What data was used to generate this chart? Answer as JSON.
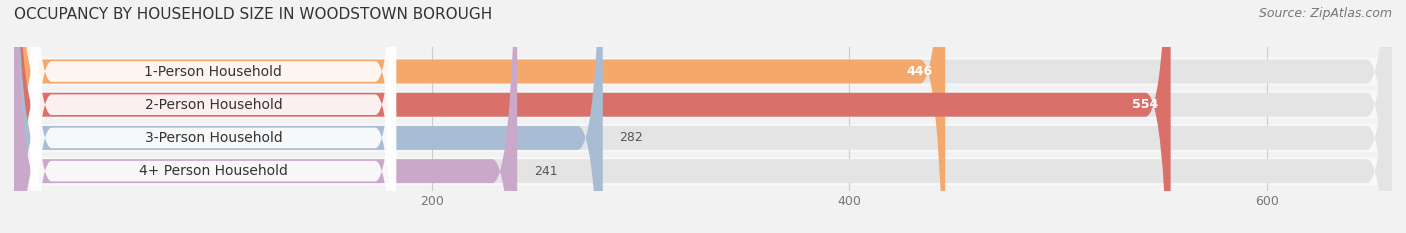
{
  "title": "OCCUPANCY BY HOUSEHOLD SIZE IN WOODSTOWN BOROUGH",
  "source": "Source: ZipAtlas.com",
  "categories": [
    "1-Person Household",
    "2-Person Household",
    "3-Person Household",
    "4+ Person Household"
  ],
  "values": [
    446,
    554,
    282,
    241
  ],
  "bar_colors": [
    "#F5A86B",
    "#D9706A",
    "#A8BDD4",
    "#C9A8C9"
  ],
  "label_colors": [
    "white",
    "white",
    "#555555",
    "#555555"
  ],
  "xlim_max": 660,
  "xticks": [
    200,
    400,
    600
  ],
  "background_color": "#f2f2f2",
  "bar_bg_color": "#e4e4e4",
  "row_bg_color": "#f8f8f8",
  "title_fontsize": 11,
  "source_fontsize": 9,
  "label_fontsize": 10,
  "value_fontsize": 9,
  "figwidth": 14.06,
  "figheight": 2.33,
  "dpi": 100
}
